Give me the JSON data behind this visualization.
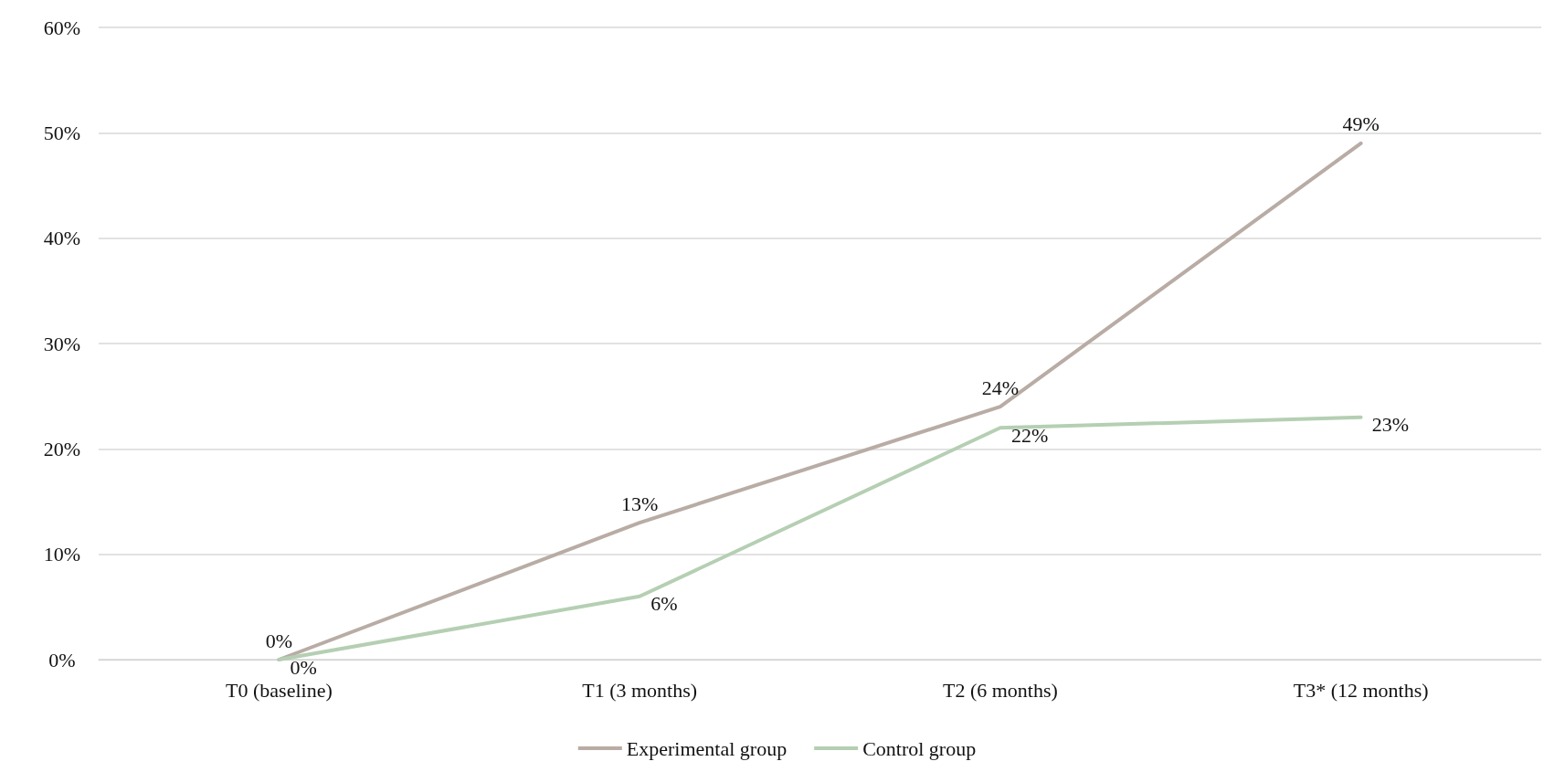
{
  "chart_data": {
    "type": "line",
    "categories": [
      "T0 (baseline)",
      "T1 (3 months)",
      "T2 (6 months)",
      "T3* (12 months)"
    ],
    "series": [
      {
        "name": "Experimental group",
        "color": "#b8aca5",
        "values": [
          0,
          13,
          24,
          49
        ],
        "value_labels": [
          "0%",
          "13%",
          "24%",
          "49%"
        ]
      },
      {
        "name": "Control group",
        "color": "#b5cfb3",
        "values": [
          0,
          6,
          22,
          23
        ],
        "value_labels": [
          "0%",
          "6%",
          "22%",
          "23%"
        ]
      }
    ],
    "ylim": [
      0,
      60
    ],
    "yticks": [
      {
        "value": 0,
        "label": "0%"
      },
      {
        "value": 10,
        "label": "10%"
      },
      {
        "value": 20,
        "label": "20%"
      },
      {
        "value": 30,
        "label": "30%"
      },
      {
        "value": 40,
        "label": "40%"
      },
      {
        "value": 50,
        "label": "50%"
      },
      {
        "value": 60,
        "label": "60%"
      }
    ],
    "grid": "y",
    "legend": "bottom",
    "marker": "none",
    "line_style": "solid"
  }
}
